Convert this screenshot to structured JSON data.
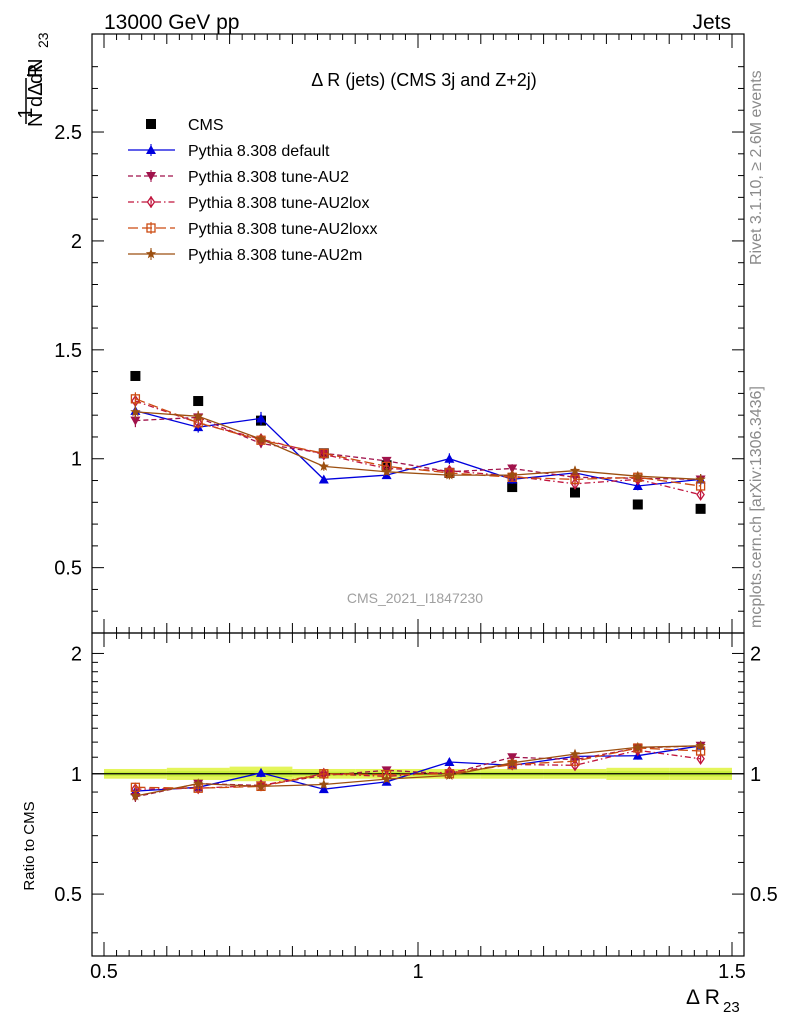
{
  "header": {
    "left": "13000 GeV pp",
    "right": "Jets"
  },
  "side_labels": {
    "rivet": "Rivet 3.1.10, ≥ 2.6M events",
    "mcplots": "mcplots.cern.ch [arXiv:1306.3436]"
  },
  "watermark": "CMS_2021_I1847230",
  "chart_data": [
    {
      "type": "scatter",
      "panel": "main",
      "title": "Δ R (jets) (CMS 3j and Z+2j)",
      "ylabel_num": "1",
      "ylabel_mid": "dN",
      "ylabel_den": "N dΔ R",
      "ylabel_sub": "23",
      "xlabel": "Δ R",
      "xlabel_sub": "23",
      "xlim": [
        0.5,
        1.5
      ],
      "ylim": [
        0.2,
        2.95
      ],
      "yticks": [
        0.5,
        1,
        1.5,
        2,
        2.5
      ],
      "ytick_labels": [
        "0.5",
        "1",
        "1.5",
        "2",
        "2.5"
      ],
      "xticks": [
        0.5,
        1,
        1.5
      ],
      "xtick_labels": [
        "0.5",
        "1",
        "1.5"
      ],
      "x": [
        0.55,
        0.65,
        0.75,
        0.85,
        0.95,
        1.05,
        1.15,
        1.25,
        1.35,
        1.45
      ],
      "legend_position": "top-left",
      "series": [
        {
          "name": "CMS",
          "color": "#000000",
          "marker": "square-filled",
          "line": "none",
          "values": [
            1.38,
            1.265,
            1.175,
            1.025,
            0.97,
            0.935,
            0.87,
            0.845,
            0.79,
            0.77
          ],
          "errors": [
            0.01,
            0.01,
            0.01,
            0.01,
            0.01,
            0.01,
            0.01,
            0.01,
            0.01,
            0.01
          ]
        },
        {
          "name": "Pythia 8.308 default",
          "color": "#0000dd",
          "marker": "triangle-up-filled",
          "line": "solid",
          "values": [
            1.22,
            1.145,
            1.185,
            0.905,
            0.925,
            1.0,
            0.905,
            0.935,
            0.875,
            0.905
          ],
          "errors": [
            0.03,
            0.025,
            0.03,
            0.015,
            0.015,
            0.025,
            0.02,
            0.02,
            0.02,
            0.025
          ]
        },
        {
          "name": "Pythia 8.308 tune-AU2",
          "color": "#a0124b",
          "marker": "triangle-down-filled",
          "line": "dashed",
          "values": [
            1.175,
            1.19,
            1.07,
            1.025,
            0.99,
            0.94,
            0.955,
            0.915,
            0.91,
            0.905
          ],
          "errors": [
            0.03,
            0.025,
            0.02,
            0.02,
            0.015,
            0.02,
            0.02,
            0.02,
            0.02,
            0.02
          ]
        },
        {
          "name": "Pythia 8.308 tune-AU2lox",
          "color": "#c0143c",
          "marker": "diamond-open",
          "line": "dashdot",
          "values": [
            1.265,
            1.165,
            1.09,
            1.02,
            0.955,
            0.945,
            0.92,
            0.885,
            0.905,
            0.835
          ],
          "errors": [
            0.03,
            0.025,
            0.02,
            0.02,
            0.015,
            0.02,
            0.02,
            0.02,
            0.02,
            0.025
          ]
        },
        {
          "name": "Pythia 8.308 tune-AU2loxx",
          "color": "#cc4a10",
          "marker": "square-open",
          "line": "longdash",
          "values": [
            1.275,
            1.165,
            1.085,
            1.025,
            0.965,
            0.935,
            0.915,
            0.905,
            0.915,
            0.875
          ],
          "errors": [
            0.03,
            0.025,
            0.02,
            0.02,
            0.015,
            0.02,
            0.02,
            0.02,
            0.02,
            0.025
          ]
        },
        {
          "name": "Pythia 8.308 tune-AU2m",
          "color": "#9c4f10",
          "marker": "star-filled",
          "line": "solid",
          "values": [
            1.215,
            1.195,
            1.09,
            0.965,
            0.94,
            0.925,
            0.925,
            0.945,
            0.92,
            0.905
          ],
          "errors": [
            0.03,
            0.025,
            0.02,
            0.02,
            0.015,
            0.02,
            0.02,
            0.02,
            0.02,
            0.025
          ]
        }
      ]
    },
    {
      "type": "scatter",
      "panel": "ratio",
      "ylabel": "Ratio to CMS",
      "xlim": [
        0.5,
        1.5
      ],
      "ylim": [
        0.35,
        2.25
      ],
      "yticks": [
        0.5,
        1,
        2
      ],
      "ytick_labels": [
        "0.5",
        "1",
        "2"
      ],
      "x": [
        0.55,
        0.65,
        0.75,
        0.85,
        0.95,
        1.05,
        1.15,
        1.25,
        1.35,
        1.45
      ],
      "reference_band": {
        "color": "#e4f55a",
        "inner_color": "#c6ef3a",
        "half_width": [
          0.02,
          0.025,
          0.03,
          0.02,
          0.02,
          0.02,
          0.02,
          0.02,
          0.025,
          0.025
        ]
      },
      "series": [
        {
          "name": "Pythia 8.308 default",
          "values": [
            0.905,
            0.925,
            1.005,
            0.915,
            0.955,
            1.07,
            1.05,
            1.105,
            1.11,
            1.175
          ],
          "errors": [
            0.025,
            0.02,
            0.025,
            0.015,
            0.015,
            0.025,
            0.02,
            0.025,
            0.025,
            0.03
          ]
        },
        {
          "name": "Pythia 8.308 tune-AU2",
          "values": [
            0.875,
            0.945,
            0.935,
            0.99,
            1.02,
            1.0,
            1.1,
            1.085,
            1.16,
            1.175
          ],
          "errors": [
            0.025,
            0.02,
            0.02,
            0.02,
            0.015,
            0.02,
            0.02,
            0.025,
            0.025,
            0.03
          ]
        },
        {
          "name": "Pythia 8.308 tune-AU2lox",
          "values": [
            0.915,
            0.92,
            0.935,
            1.0,
            0.985,
            1.01,
            1.055,
            1.05,
            1.145,
            1.09
          ],
          "errors": [
            0.025,
            0.02,
            0.02,
            0.02,
            0.015,
            0.02,
            0.02,
            0.025,
            0.025,
            0.03
          ]
        },
        {
          "name": "Pythia 8.308 tune-AU2loxx",
          "values": [
            0.925,
            0.92,
            0.93,
            1.0,
            0.995,
            1.0,
            1.055,
            1.075,
            1.16,
            1.14
          ],
          "errors": [
            0.025,
            0.02,
            0.02,
            0.02,
            0.015,
            0.02,
            0.02,
            0.025,
            0.025,
            0.03
          ]
        },
        {
          "name": "Pythia 8.308 tune-AU2m",
          "values": [
            0.88,
            0.945,
            0.93,
            0.94,
            0.97,
            0.99,
            1.065,
            1.12,
            1.165,
            1.175
          ],
          "errors": [
            0.025,
            0.02,
            0.02,
            0.02,
            0.015,
            0.02,
            0.02,
            0.025,
            0.025,
            0.03
          ]
        }
      ]
    }
  ]
}
